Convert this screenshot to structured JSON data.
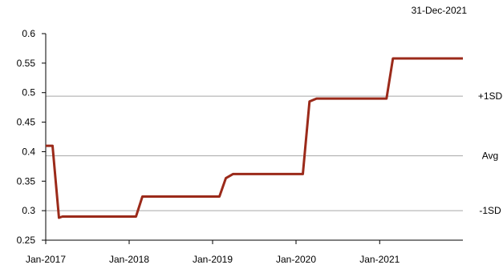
{
  "date_label": "31-Dec-2021",
  "colors": {
    "line": "#9B2A1A",
    "axis": "#000000",
    "ref_line": "#A6A6A6"
  },
  "chart_data": {
    "type": "line",
    "title": "",
    "xlabel": "",
    "ylabel": "",
    "ylim": [
      0.25,
      0.6
    ],
    "xlim": [
      "2017-01-01",
      "2021-12-31"
    ],
    "y_ticks": [
      "0.25",
      "0.3",
      "0.35",
      "0.4",
      "0.45",
      "0.5",
      "0.55",
      "0.6"
    ],
    "x_ticks": [
      {
        "date": "2017-01-01",
        "label": "Jan-2017"
      },
      {
        "date": "2018-01-01",
        "label": "Jan-2018"
      },
      {
        "date": "2019-01-01",
        "label": "Jan-2019"
      },
      {
        "date": "2020-01-01",
        "label": "Jan-2020"
      },
      {
        "date": "2021-01-01",
        "label": "Jan-2021"
      }
    ],
    "reference_lines": [
      {
        "label": "+1SD",
        "value": 0.494
      },
      {
        "label": "Avg",
        "value": 0.393
      },
      {
        "label": "-1SD",
        "value": 0.3
      }
    ],
    "grid": false,
    "legend": "none",
    "series": [
      {
        "x": [
          "2017-01-01",
          "2017-01-31",
          "2017-02-28",
          "2017-03-15",
          "2018-01-31",
          "2018-02-28",
          "2019-01-31",
          "2019-02-28",
          "2019-03-31",
          "2020-01-31",
          "2020-02-29",
          "2020-03-31",
          "2021-01-31",
          "2021-02-28",
          "2021-12-31"
        ],
        "y": [
          0.41,
          0.41,
          0.288,
          0.29,
          0.29,
          0.324,
          0.324,
          0.355,
          0.362,
          0.362,
          0.485,
          0.49,
          0.49,
          0.558,
          0.558
        ]
      }
    ]
  }
}
